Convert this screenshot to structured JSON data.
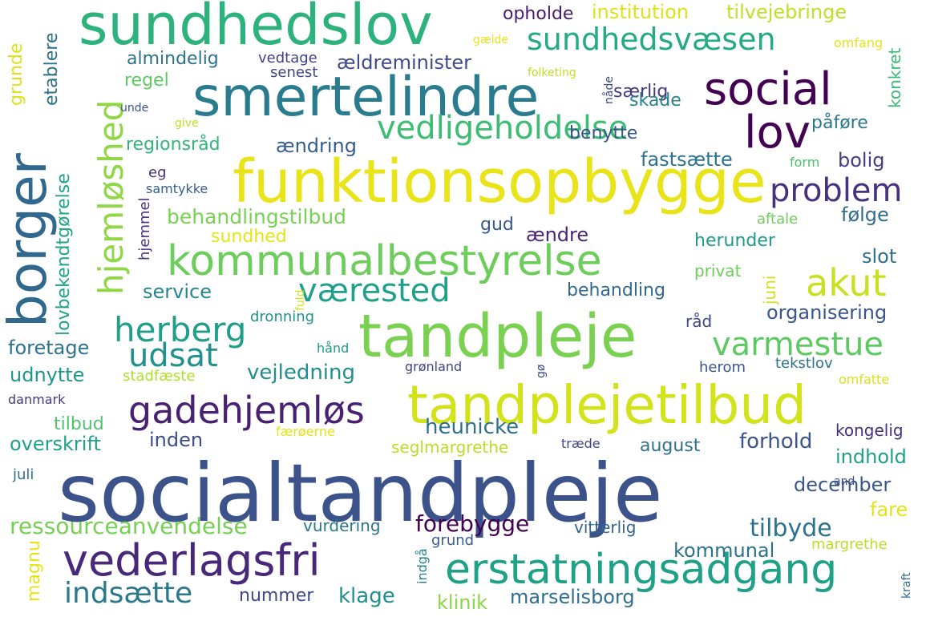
{
  "words": [
    {
      "text": "socialtandpleje",
      "color": "#3b528b"
    },
    {
      "text": "funktionsopbygge",
      "color": "#e8e419"
    },
    {
      "text": "tandplejetilbud",
      "color": "#d2e21b"
    },
    {
      "text": "tandpleje",
      "color": "#7ad151"
    },
    {
      "text": "smertelindre",
      "color": "#287c8e"
    },
    {
      "text": "sundhedslov",
      "color": "#2db27d"
    },
    {
      "text": "borger",
      "color": "#31688e"
    },
    {
      "text": "kommunalbestyrelse",
      "color": "#6ccd5a"
    },
    {
      "text": "vederlagsfri",
      "color": "#482878"
    },
    {
      "text": "erstatningsadgang",
      "color": "#1fa187"
    },
    {
      "text": "hjemløshed",
      "color": "#8fd744"
    },
    {
      "text": "social",
      "color": "#440154"
    },
    {
      "text": "lov",
      "color": "#440154"
    },
    {
      "text": "sundhedsvæsen",
      "color": "#25ab82"
    },
    {
      "text": "vedligeholdelse",
      "color": "#3dbc74"
    },
    {
      "text": "problem",
      "color": "#46327e"
    },
    {
      "text": "akut",
      "color": "#c8e020"
    },
    {
      "text": "gadehjemløs",
      "color": "#482173"
    },
    {
      "text": "herberg",
      "color": "#1f9e89"
    },
    {
      "text": "varmestue",
      "color": "#5ec962"
    },
    {
      "text": "værested",
      "color": "#1fa088"
    },
    {
      "text": "udsat",
      "color": "#21918c"
    },
    {
      "text": "indsætte",
      "color": "#2a788e"
    },
    {
      "text": "ressourceanvendelse",
      "color": "#75d054"
    },
    {
      "text": "behandlingstilbud",
      "color": "#77d153"
    },
    {
      "text": "institution",
      "color": "#dde318"
    },
    {
      "text": "tilvejebringe",
      "color": "#c0df25"
    },
    {
      "text": "opholde",
      "color": "#481b6d"
    },
    {
      "text": "almindelig",
      "color": "#2c728e"
    },
    {
      "text": "vedtage",
      "color": "#423f85"
    },
    {
      "text": "ældreminister",
      "color": "#3e4a89"
    },
    {
      "text": "senest",
      "color": "#414487"
    },
    {
      "text": "regel",
      "color": "#5ec962"
    },
    {
      "text": "særlig",
      "color": "#453781"
    },
    {
      "text": "skade",
      "color": "#26828e"
    },
    {
      "text": "påføre",
      "color": "#2a788e"
    },
    {
      "text": "regionsråd",
      "color": "#32b67a"
    },
    {
      "text": "ændring",
      "color": "#365c8d"
    },
    {
      "text": "benytte",
      "color": "#39568c"
    },
    {
      "text": "fastsætte",
      "color": "#2c728e"
    },
    {
      "text": "bolig",
      "color": "#433e85"
    },
    {
      "text": "form",
      "color": "#4ac16d"
    },
    {
      "text": "eg",
      "color": "#463480"
    },
    {
      "text": "samtykke",
      "color": "#355f8d"
    },
    {
      "text": "hjemmel",
      "color": "#46337f"
    },
    {
      "text": "lovbekendtgørelse",
      "color": "#20a486"
    },
    {
      "text": "følge",
      "color": "#2f6c8e"
    },
    {
      "text": "aftale",
      "color": "#6ece58"
    },
    {
      "text": "sundhed",
      "color": "#e5e419"
    },
    {
      "text": "gud",
      "color": "#38588c"
    },
    {
      "text": "ændre",
      "color": "#482576"
    },
    {
      "text": "herunder",
      "color": "#1f9a8a"
    },
    {
      "text": "slot",
      "color": "#2d708e"
    },
    {
      "text": "privat",
      "color": "#6ccd5a"
    },
    {
      "text": "juni",
      "color": "#d0e11c"
    },
    {
      "text": "service",
      "color": "#24868e"
    },
    {
      "text": "behandling",
      "color": "#31688e"
    },
    {
      "text": "fuld",
      "color": "#d8e219"
    },
    {
      "text": "organisering",
      "color": "#39568c"
    },
    {
      "text": "dronning",
      "color": "#21918c"
    },
    {
      "text": "råd",
      "color": "#404688"
    },
    {
      "text": "foretage",
      "color": "#2c738e"
    },
    {
      "text": "hånd",
      "color": "#1f9a8a"
    },
    {
      "text": "udnytte",
      "color": "#1f968b"
    },
    {
      "text": "vejledning",
      "color": "#218f8d"
    },
    {
      "text": "grønland",
      "color": "#414487"
    },
    {
      "text": "stadfæste",
      "color": "#ade028"
    },
    {
      "text": "gø",
      "color": "#3f4788"
    },
    {
      "text": "herom",
      "color": "#39568c"
    },
    {
      "text": "tekstlov",
      "color": "#2d708e"
    },
    {
      "text": "omfatte",
      "color": "#d8e219"
    },
    {
      "text": "danmark",
      "color": "#453882"
    },
    {
      "text": "tilbud",
      "color": "#4ec36b"
    },
    {
      "text": "heunicke",
      "color": "#2e6f8e"
    },
    {
      "text": "overskrift",
      "color": "#1fa187"
    },
    {
      "text": "inden",
      "color": "#3d4d8a"
    },
    {
      "text": "færøerne",
      "color": "#e5e419"
    },
    {
      "text": "forhold",
      "color": "#3b528b"
    },
    {
      "text": "kongelig",
      "color": "#46307e"
    },
    {
      "text": "seglmargrethe",
      "color": "#bade28"
    },
    {
      "text": "træde",
      "color": "#414487"
    },
    {
      "text": "august",
      "color": "#2c728e"
    },
    {
      "text": "indhold",
      "color": "#1f9f88"
    },
    {
      "text": "and",
      "color": "#3e4989"
    },
    {
      "text": "juli",
      "color": "#2c728e"
    },
    {
      "text": "december",
      "color": "#39568c"
    },
    {
      "text": "fare",
      "color": "#e3e418"
    },
    {
      "text": "forebygge",
      "color": "#440154"
    },
    {
      "text": "tilbyde",
      "color": "#2c728e"
    },
    {
      "text": "vurdering",
      "color": "#2a768e"
    },
    {
      "text": "vitterlig",
      "color": "#32658e"
    },
    {
      "text": "grund",
      "color": "#365c8d"
    },
    {
      "text": "kommunal",
      "color": "#2c728e"
    },
    {
      "text": "margrethe",
      "color": "#bade28"
    },
    {
      "text": "magnu",
      "color": "#e5e419"
    },
    {
      "text": "indgå",
      "color": "#26828e"
    },
    {
      "text": "nummer",
      "color": "#404688"
    },
    {
      "text": "klage",
      "color": "#218f8d"
    },
    {
      "text": "klinik",
      "color": "#8bd646"
    },
    {
      "text": "marselisborg",
      "color": "#2e6e8e"
    },
    {
      "text": "kraft",
      "color": "#2f6b8e"
    },
    {
      "text": "grunde",
      "color": "#dde318"
    },
    {
      "text": "etablere",
      "color": "#2c718e"
    },
    {
      "text": "unde",
      "color": "#3b528b"
    },
    {
      "text": "give",
      "color": "#c2df23"
    },
    {
      "text": "gælde",
      "color": "#e5e419"
    },
    {
      "text": "omfang",
      "color": "#e5e419"
    },
    {
      "text": "folketing",
      "color": "#c2df23"
    },
    {
      "text": "nåde",
      "color": "#3e4a89"
    },
    {
      "text": "konkret",
      "color": "#3aba76"
    }
  ]
}
